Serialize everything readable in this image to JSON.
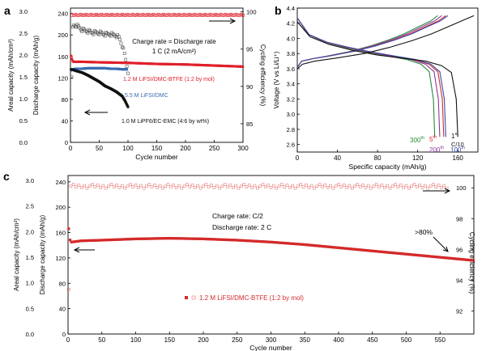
{
  "chart_data": [
    {
      "type": "scatter",
      "panel": "a",
      "xlabel": "Cycle number",
      "y1label": "Areal capacity (mAh/cm²)",
      "y2label": "Discharge capacity (mAh/g)",
      "y3label": "Cycling efficiency (%)",
      "xlim": [
        0,
        300
      ],
      "xticks": [
        0,
        50,
        100,
        150,
        200,
        250,
        300
      ],
      "y1ticks": [
        "0.0",
        "0.5",
        "1.0",
        "1.5",
        "2.0",
        "2.5",
        "3.0"
      ],
      "y2ticks": [
        0,
        40,
        80,
        120,
        160,
        200,
        240
      ],
      "y2lim": [
        0,
        250
      ],
      "effticks": [
        85,
        90,
        95,
        100
      ],
      "efflim": [
        82.5,
        100.5
      ],
      "annotation": [
        "Charge rate = Discharge rate",
        "1 C (2 mA/cm²)"
      ],
      "series": [
        {
          "name": "1.2 M LiFSI/DMC-BTFE (1:2 by mol)",
          "color": "#e0202a",
          "x": [
            1,
            2,
            3,
            5,
            10,
            20,
            50,
            100,
            150,
            200,
            250,
            300
          ],
          "y": [
            161,
            158,
            153,
            150,
            150,
            150,
            149,
            148,
            146,
            145,
            143,
            141
          ]
        },
        {
          "name": "5.5 M LiFSI/DMC",
          "color": "#3a6db0",
          "x": [
            1,
            2,
            5,
            10,
            20,
            30,
            40,
            50,
            60,
            70,
            80,
            90,
            98
          ],
          "y": [
            134,
            135,
            136,
            137,
            137,
            138,
            138,
            138,
            138,
            137,
            137,
            136,
            136
          ]
        },
        {
          "name": "1.0 M LiPF6/EC-EMC (4:6 by wt%)",
          "color": "#111111",
          "x": [
            1,
            5,
            10,
            20,
            30,
            40,
            50,
            60,
            70,
            80,
            90,
            95,
            100
          ],
          "y": [
            136,
            135,
            133,
            130,
            125,
            119,
            113,
            105,
            100,
            94,
            86,
            77,
            66
          ]
        }
      ],
      "efficiency": [
        {
          "name": "1.2 M LiFSI/DMC-BTFE",
          "color": "#e0202a",
          "value_pct": 99.6
        },
        {
          "name": "1.0 M LiPF6/EC-EMC",
          "x": [
            1,
            3,
            5,
            10,
            20,
            30,
            40,
            50,
            60,
            70,
            80,
            85,
            90,
            95,
            100
          ],
          "y": [
            84.5,
            97.5,
            98.2,
            98.2,
            97.6,
            97.4,
            97.2,
            97.2,
            97.0,
            97.0,
            96.8,
            96.5,
            95.5,
            94.0,
            92.0
          ]
        }
      ]
    },
    {
      "type": "line",
      "panel": "b",
      "xlabel": "Specific capacity (mAh/g)",
      "ylabel": "Voltage (V vs Li/Li⁺)",
      "xlim": [
        0,
        180
      ],
      "ylim": [
        2.5,
        4.4
      ],
      "xticks": [
        0,
        40,
        80,
        120,
        160
      ],
      "yticks": [
        "2.6",
        "2.8",
        "3.0",
        "3.2",
        "3.4",
        "3.6",
        "3.8",
        "4.0",
        "4.2",
        "4.4"
      ],
      "series": [
        {
          "name": "1st C/10",
          "label_main": "1",
          "label_sup": "st",
          "label_sub": "C/10",
          "color": "#111111",
          "capacity": 160,
          "charge_capacity": 176
        },
        {
          "name": "100th",
          "label_main": "100",
          "label_sup": "th",
          "color": "#3a4da8",
          "capacity": 148,
          "charge_capacity": 150
        },
        {
          "name": "5th",
          "label_main": "5",
          "label_sup": "th",
          "color": "#d42a2a",
          "capacity": 146,
          "charge_capacity": 148
        },
        {
          "name": "200th",
          "label_main": "200",
          "label_sup": "th",
          "color": "#8a3a9a",
          "capacity": 142,
          "charge_capacity": 144
        },
        {
          "name": "300th",
          "label_main": "300",
          "label_sup": "th",
          "color": "#2a8a3a",
          "capacity": 137,
          "charge_capacity": 140
        }
      ]
    },
    {
      "type": "scatter",
      "panel": "c",
      "xlabel": "Cycle number",
      "y1label": "Areal capacity (mAh/cm²)",
      "y2label": "Discharge capacity (mAh/g)",
      "y3label": "Cycling efficiency (%)",
      "xlim": [
        0,
        600
      ],
      "xticks": [
        0,
        50,
        100,
        150,
        200,
        250,
        300,
        350,
        400,
        450,
        500,
        550
      ],
      "y1ticks": [
        "0.0",
        "0.5",
        "1.0",
        "1.5",
        "2.0",
        "2.5",
        "3.0"
      ],
      "y2ticks": [
        0,
        40,
        80,
        120,
        160,
        200,
        240
      ],
      "y2lim": [
        0,
        250
      ],
      "effticks": [
        92,
        94,
        96,
        98,
        100
      ],
      "efflim": [
        90.5,
        100.8
      ],
      "annotation": [
        "Charge rate: C/2",
        "Discharge rate: 2 C"
      ],
      "retention_label": ">80%",
      "series": [
        {
          "name": "1.2 M LiFSI/DMC-BTFE (1:2 by mol)",
          "color": "#d42a2a",
          "x": [
            1,
            2,
            5,
            20,
            50,
            100,
            150,
            200,
            250,
            300,
            350,
            400,
            450,
            500,
            550,
            600
          ],
          "y": [
            166,
            150,
            145,
            147,
            148,
            150,
            151,
            150,
            148,
            145,
            141,
            136,
            131,
            126,
            121,
            116
          ]
        }
      ],
      "efficiency": {
        "value_pct": 100.1
      }
    }
  ]
}
